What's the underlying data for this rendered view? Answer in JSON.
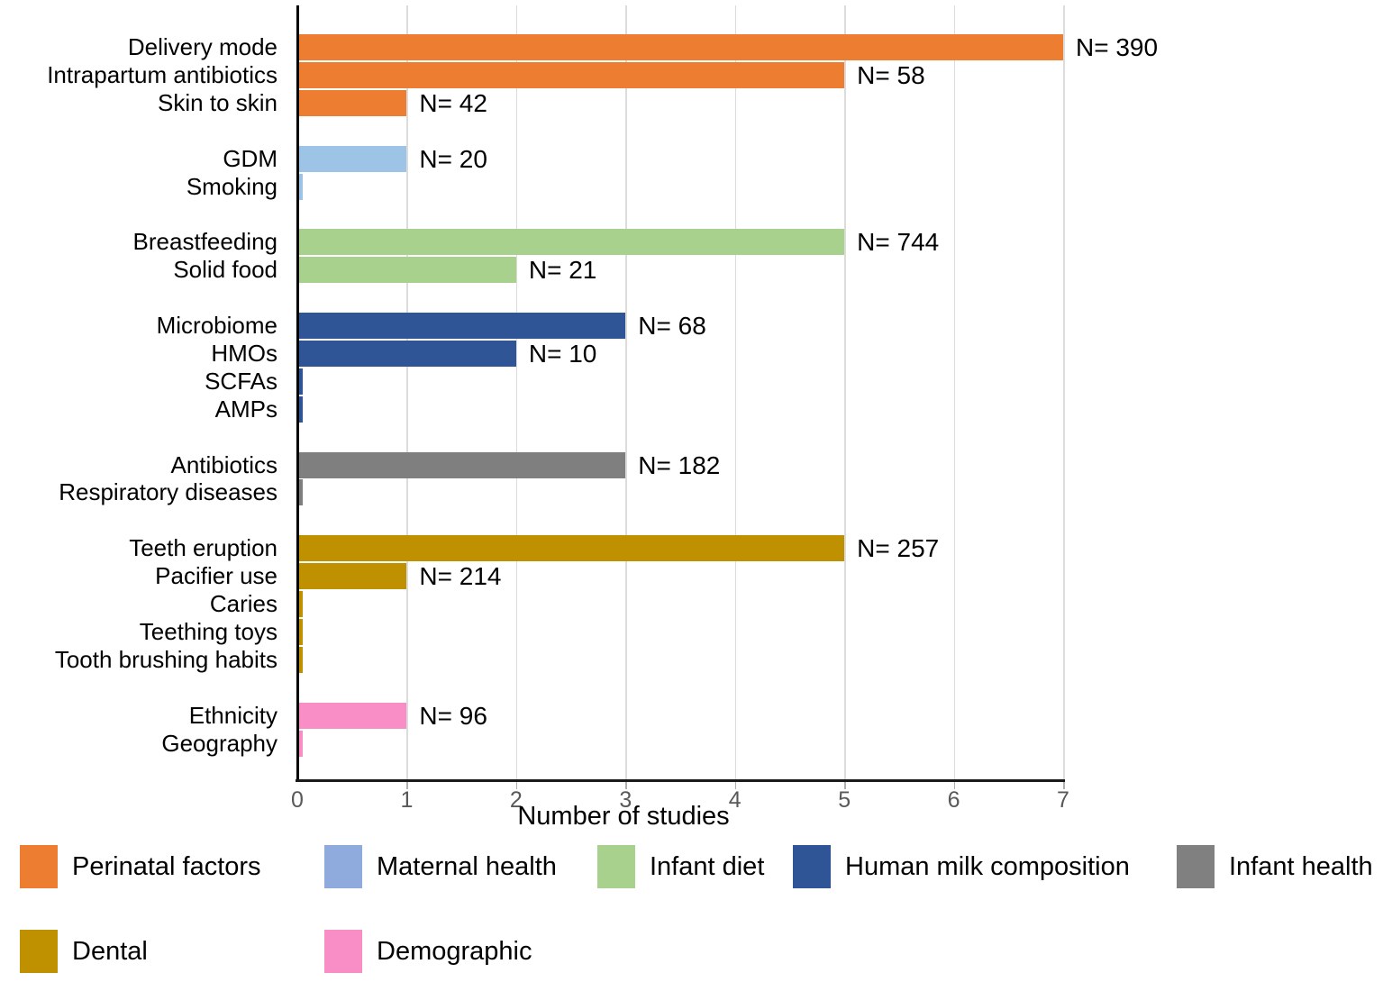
{
  "figure": {
    "background": "#ffffff"
  },
  "chart_data": {
    "type": "bar",
    "orientation": "horizontal",
    "title": "",
    "xlabel": "Number of studies",
    "xlim": [
      0,
      7
    ],
    "xticks": [
      "0",
      "1",
      "2",
      "3",
      "4",
      "5",
      "6",
      "7"
    ],
    "grid": "vertical gridlines at each integer, light gray",
    "legend_position": "bottom, two rows",
    "bars": [
      {
        "label": "Delivery mode",
        "group": "Perinatal factors",
        "studies": 7,
        "n_label": "N= 390"
      },
      {
        "label": "Intrapartum antibiotics",
        "group": "Perinatal factors",
        "studies": 5,
        "n_label": "N= 58"
      },
      {
        "label": "Skin to skin",
        "group": "Perinatal factors",
        "studies": 1,
        "n_label": "N= 42"
      },
      {
        "label": "GDM",
        "group": "Maternal health",
        "studies": 1,
        "n_label": "N= 20"
      },
      {
        "label": "Smoking",
        "group": "Maternal health",
        "studies": 0.05,
        "n_label": ""
      },
      {
        "label": "Breastfeeding",
        "group": "Infant diet",
        "studies": 5,
        "n_label": "N= 744"
      },
      {
        "label": "Solid food",
        "group": "Infant diet",
        "studies": 2,
        "n_label": "N= 21"
      },
      {
        "label": "Microbiome",
        "group": "Human milk composition",
        "studies": 3,
        "n_label": "N= 68"
      },
      {
        "label": "HMOs",
        "group": "Human milk composition",
        "studies": 2,
        "n_label": "N= 10"
      },
      {
        "label": "SCFAs",
        "group": "Human milk composition",
        "studies": 0.05,
        "n_label": ""
      },
      {
        "label": "AMPs",
        "group": "Human milk composition",
        "studies": 0.05,
        "n_label": ""
      },
      {
        "label": "Antibiotics",
        "group": "Infant health",
        "studies": 3,
        "n_label": "N= 182"
      },
      {
        "label": "Respiratory diseases",
        "group": "Infant health",
        "studies": 0.05,
        "n_label": ""
      },
      {
        "label": "Teeth eruption",
        "group": "Dental",
        "studies": 5,
        "n_label": "N= 257"
      },
      {
        "label": "Pacifier use",
        "group": "Dental",
        "studies": 1,
        "n_label": "N= 214"
      },
      {
        "label": "Caries",
        "group": "Dental",
        "studies": 0.05,
        "n_label": ""
      },
      {
        "label": "Teething toys",
        "group": "Dental",
        "studies": 0.05,
        "n_label": ""
      },
      {
        "label": "Tooth brushing habits",
        "group": "Dental",
        "studies": 0.05,
        "n_label": ""
      },
      {
        "label": "Ethnicity",
        "group": "Demographic",
        "studies": 1,
        "n_label": "N= 96"
      },
      {
        "label": "Geography",
        "group": "Demographic",
        "studies": 0.05,
        "n_label": ""
      }
    ],
    "bar_colors_by_group": {
      "Perinatal factors": "#ED7D31",
      "Maternal health": "#9DC3E6",
      "Infant diet": "#A9D18E",
      "Human milk composition": "#2F5597",
      "Infant health": "#7F7F7F",
      "Dental": "#BF9000",
      "Demographic": "#F98DC6"
    },
    "legend": {
      "entries": [
        {
          "label": "Perinatal factors",
          "color": "#ED7D31"
        },
        {
          "label": "Maternal health",
          "color": "#8FAADC"
        },
        {
          "label": "Infant diet",
          "color": "#A9D18E"
        },
        {
          "label": "Human milk composition",
          "color": "#2F5597"
        },
        {
          "label": "Infant health",
          "color": "#808080"
        },
        {
          "label": "Dental",
          "color": "#BF9000"
        },
        {
          "label": "Demographic",
          "color": "#F98DC6"
        }
      ]
    }
  }
}
